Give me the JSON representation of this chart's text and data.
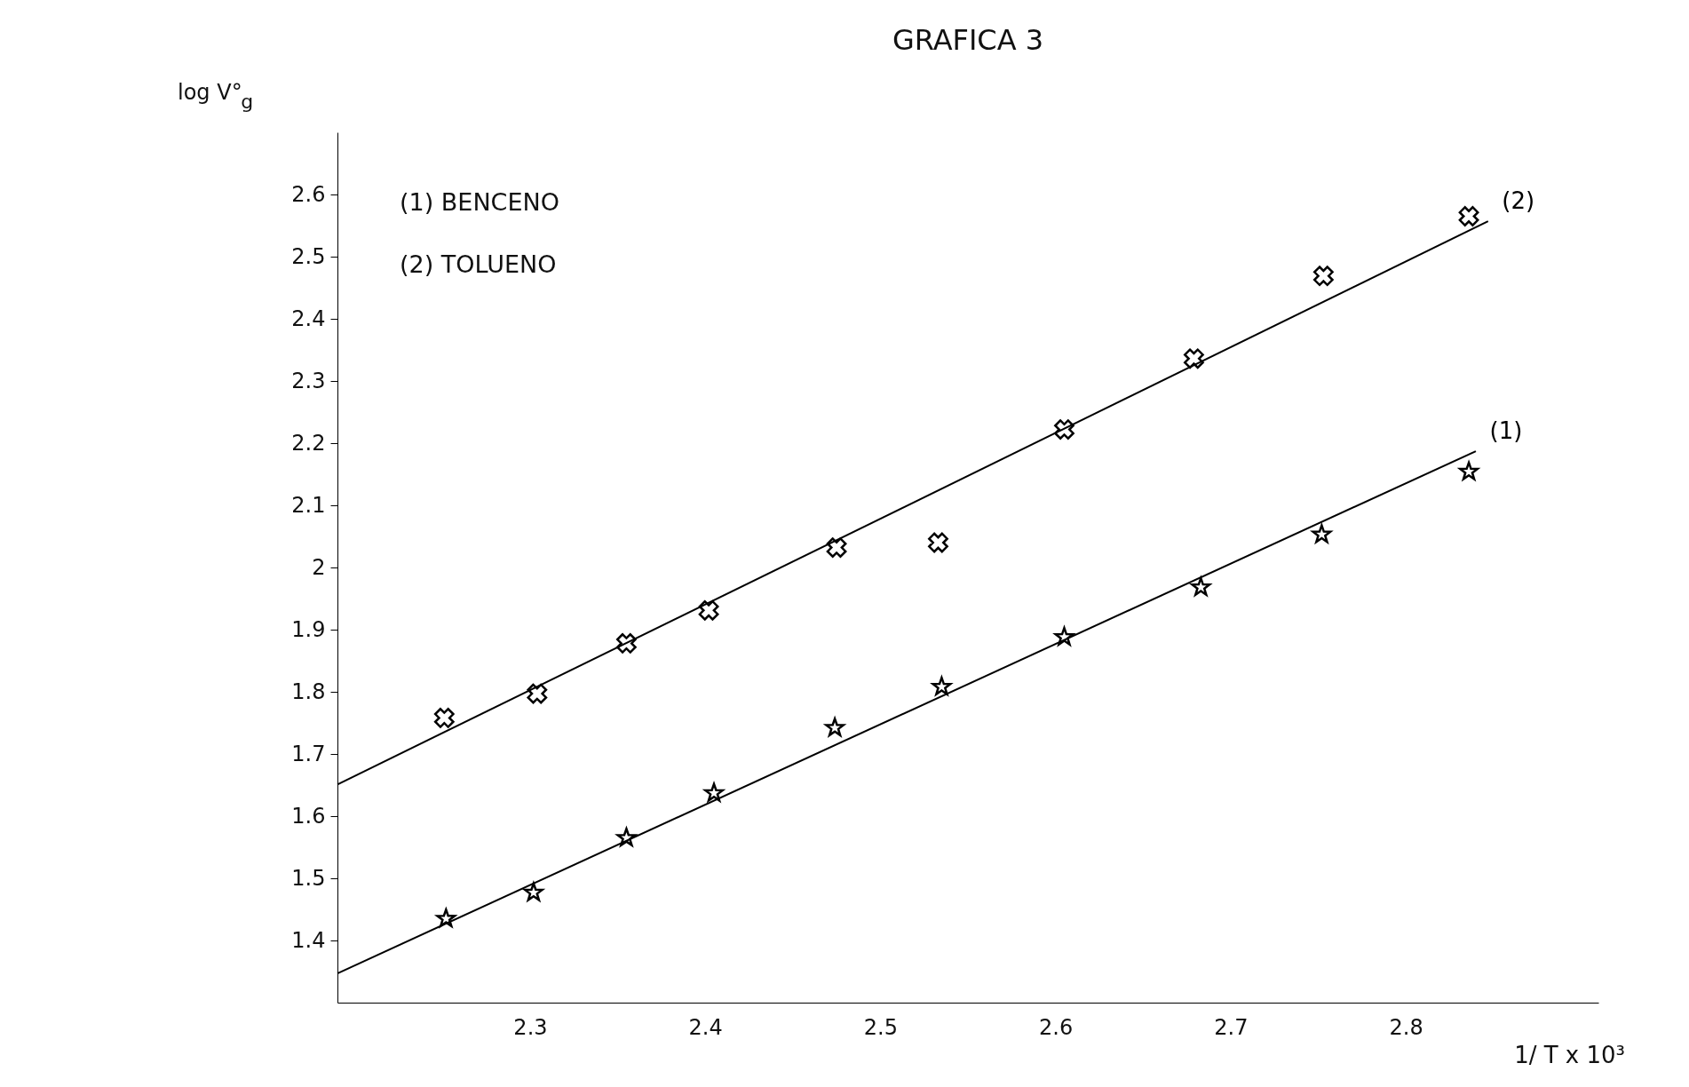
{
  "chart_data": {
    "type": "scatter",
    "title": "GRAFICA 3",
    "xlabel": "1/ T x 10³",
    "ylabel": "log V°$_{g}$",
    "annotations": [
      "(1) BENCENO",
      "(2) TOLUENO"
    ],
    "series": [
      {
        "color": "#000000",
        "marker": "cross",
        "x": [
          2.251,
          2.304,
          2.355,
          2.402,
          2.475,
          2.533,
          2.605,
          2.679,
          2.753,
          2.836
        ],
        "values": [
          1.758,
          1.797,
          1.878,
          1.931,
          2.032,
          2.04,
          2.222,
          2.336,
          2.469,
          2.565
        ]
      },
      {
        "color": "#000000",
        "marker": "star",
        "x": [
          2.252,
          2.302,
          2.355,
          2.405,
          2.474,
          2.535,
          2.605,
          2.683,
          2.752,
          2.836
        ],
        "values": [
          1.435,
          1.477,
          1.565,
          1.637,
          1.742,
          1.808,
          1.888,
          1.968,
          2.053,
          2.154
        ]
      },
      {
        "type": "line",
        "name": "(2)",
        "color": "#000000",
        "x": [
          2.19,
          2.847
        ],
        "values": [
          1.651,
          2.557
        ]
      },
      {
        "type": "line",
        "name": "(1)",
        "color": "#000000",
        "x": [
          2.19,
          2.84
        ],
        "values": [
          1.347,
          2.187
        ]
      }
    ],
    "xlim": [
      2.19,
      2.91
    ],
    "xticks": [
      2.3,
      2.4,
      2.5,
      2.6,
      2.7,
      2.8
    ],
    "ylim": [
      1.3,
      2.7
    ],
    "yticks": [
      1.4,
      1.5,
      1.6,
      1.7,
      1.8,
      1.9,
      2.0,
      2.1,
      2.2,
      2.3,
      2.4,
      2.5,
      2.6
    ],
    "grid": false,
    "line_style": "solid"
  }
}
